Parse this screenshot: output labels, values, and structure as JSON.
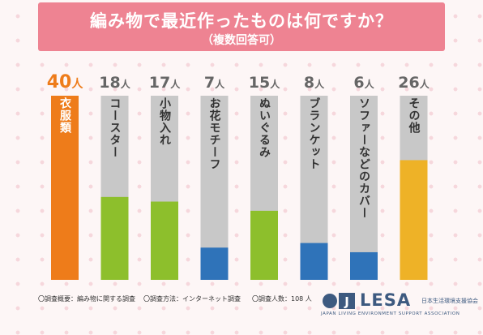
{
  "header": {
    "title": "編み物で最近作ったものは何ですか？",
    "subtitle": "（複数回答可）"
  },
  "chart_data": {
    "type": "bar",
    "unit": "人",
    "total": 108,
    "categories": [
      "衣服類",
      "コースター",
      "小物入れ",
      "お花モチーフ",
      "ぬいぐるみ",
      "ブランケット",
      "ソファーなどのカバー",
      "その他"
    ],
    "values": [
      40,
      18,
      17,
      7,
      15,
      8,
      6,
      26
    ],
    "value_labels": [
      "40人",
      "18人",
      "17人",
      "7人",
      "15人",
      "8人",
      "6人",
      "26人"
    ],
    "colors": [
      "#ee7c1a",
      "#8dbf2c",
      "#8dbf2c",
      "#2f73b9",
      "#8dbf2c",
      "#2f73b9",
      "#2f73b9",
      "#eeb227"
    ],
    "track_color": "#c8c8c8",
    "highlight_label_color": "#ee7c1a",
    "label_color": "#666666"
  },
  "footer": {
    "overview": "〇調査概要：編み物に関する調査",
    "method": "〇調査方法：インターネット調査",
    "respondents": "〇調査人数：108 人"
  },
  "brand": {
    "mark": "J",
    "name": "LESA",
    "tagline_jp": "日本生活環境支援協会",
    "tagline_en": "JAPAN LIVING ENVIRONMENT SUPPORT ASSOCIATION"
  }
}
